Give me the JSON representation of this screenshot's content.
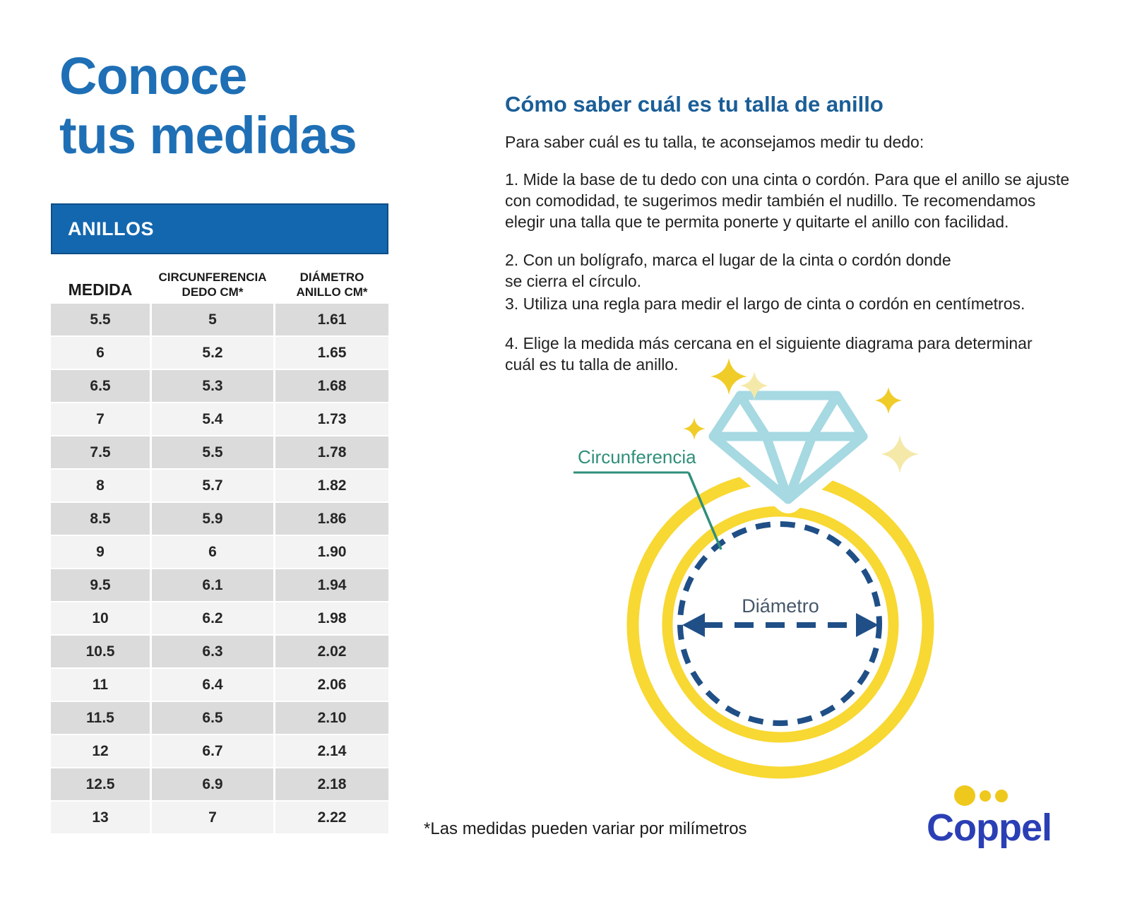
{
  "left": {
    "title": "Conoce\ntus medidas",
    "table": {
      "band_label": "ANILLOS",
      "columns": [
        "MEDIDA",
        "CIRCUNFERENCIA\nDEDO CM*",
        "DIÁMETRO\nANILLO CM*"
      ],
      "rows": [
        [
          "5.5",
          "5",
          "1.61"
        ],
        [
          "6",
          "5.2",
          "1.65"
        ],
        [
          "6.5",
          "5.3",
          "1.68"
        ],
        [
          "7",
          "5.4",
          "1.73"
        ],
        [
          "7.5",
          "5.5",
          "1.78"
        ],
        [
          "8",
          "5.7",
          "1.82"
        ],
        [
          "8.5",
          "5.9",
          "1.86"
        ],
        [
          "9",
          "6",
          "1.90"
        ],
        [
          "9.5",
          "6.1",
          "1.94"
        ],
        [
          "10",
          "6.2",
          "1.98"
        ],
        [
          "10.5",
          "6.3",
          "2.02"
        ],
        [
          "11",
          "6.4",
          "2.06"
        ],
        [
          "11.5",
          "6.5",
          "2.10"
        ],
        [
          "12",
          "6.7",
          "2.14"
        ],
        [
          "12.5",
          "6.9",
          "2.18"
        ],
        [
          "13",
          "7",
          "2.22"
        ]
      ]
    }
  },
  "right": {
    "heading": "Cómo saber cuál es tu talla de anillo",
    "intro": "Para saber cuál es tu talla, te aconsejamos medir tu dedo:",
    "steps": [
      {
        "text": "1. Mide la base de tu dedo con una cinta o cordón. Para que el anillo se ajuste\ncon comodidad, te sugerimos medir también el nudillo. Te recomendamos\nelegir una talla que te permita ponerte y quitarte el anillo con facilidad."
      },
      {
        "text": "2. Con un bolígrafo, marca el lugar de la cinta o cordón donde\nse cierra el círculo."
      },
      {
        "text": "3. Utiliza una regla para medir el largo de cinta o cordón en centímetros."
      },
      {
        "text": "4. Elige la medida más cercana en el siguiente diagrama para determinar\ncuál es tu talla de anillo."
      }
    ]
  },
  "diagram": {
    "circumference_label": "Circunferencia",
    "diameter_label": "Diámetro",
    "colors": {
      "ring_yellow": "#F8D832",
      "diamond_blue": "#A6D9E2",
      "dashed_navy": "#1F4F86",
      "sparkle_yellow": "#F0CC29",
      "sparkle_pale": "#F5E9A9",
      "circumference_teal": "#2F8F7A",
      "diameter_text": "#47586B"
    }
  },
  "footer": {
    "note": "*Las medidas pueden variar por milímetros",
    "brand": "Coppel",
    "brand_color": "#2B3FB5",
    "dot_color": "#EFC81D"
  },
  "theme": {
    "title_blue": "#1E6FB5",
    "heading_blue": "#1A5E97",
    "band_blue": "#1367AE",
    "row_gray": "#DBDBDB",
    "row_light": "#F3F3F3"
  }
}
